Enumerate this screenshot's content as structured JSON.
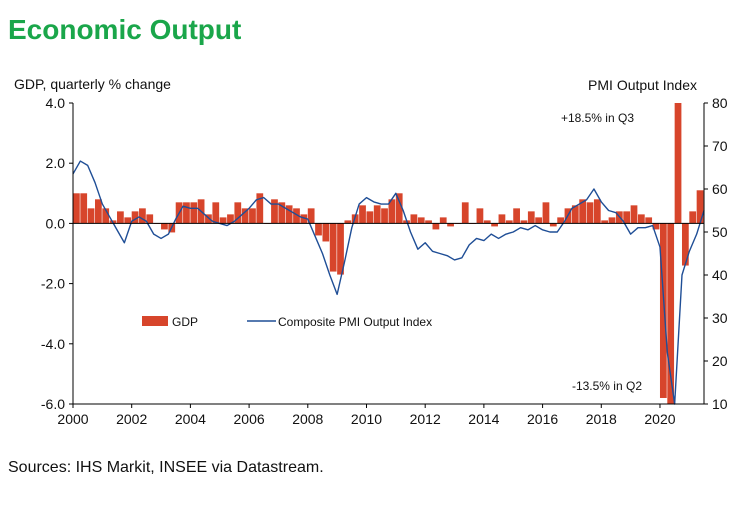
{
  "page": {
    "title": "Economic Output",
    "source": "Sources: IHS Markit, INSEE via Datastream."
  },
  "colors": {
    "title": "#1aa64a",
    "gdp": "#d7452b",
    "pmi": "#1f4e96",
    "axis": "#000000"
  },
  "chart_data": {
    "type": "bar",
    "left_axis_label": "GDP, quarterly % change",
    "right_axis_label": "PMI Output Index",
    "left_ylim": [
      -6,
      4
    ],
    "left_ticks": [
      "4.0",
      "2.0",
      "0.0",
      "-2.0",
      "-4.0",
      "-6.0"
    ],
    "right_ylim": [
      10,
      80
    ],
    "right_ticks": [
      "80",
      "70",
      "60",
      "50",
      "40",
      "30",
      "20",
      "10"
    ],
    "x_range": [
      2000,
      2021.5
    ],
    "x_ticks": [
      "2000",
      "2002",
      "2004",
      "2006",
      "2008",
      "2010",
      "2012",
      "2014",
      "2016",
      "2018",
      "2020"
    ],
    "legend": {
      "gdp": "GDP",
      "pmi": "Composite PMI Output Index",
      "position": "lower-left"
    },
    "annotations": {
      "high": "+18.5% in Q3",
      "low": "-13.5% in Q2"
    },
    "series": [
      {
        "name": "GDP",
        "kind": "bar",
        "axis": "left",
        "x": [
          "2000 Q1",
          "2000 Q2",
          "2000 Q3",
          "2000 Q4",
          "2001 Q1",
          "2001 Q2",
          "2001 Q3",
          "2001 Q4",
          "2002 Q1",
          "2002 Q2",
          "2002 Q3",
          "2002 Q4",
          "2003 Q1",
          "2003 Q2",
          "2003 Q3",
          "2003 Q4",
          "2004 Q1",
          "2004 Q2",
          "2004 Q3",
          "2004 Q4",
          "2005 Q1",
          "2005 Q2",
          "2005 Q3",
          "2005 Q4",
          "2006 Q1",
          "2006 Q2",
          "2006 Q3",
          "2006 Q4",
          "2007 Q1",
          "2007 Q2",
          "2007 Q3",
          "2007 Q4",
          "2008 Q1",
          "2008 Q2",
          "2008 Q3",
          "2008 Q4",
          "2009 Q1",
          "2009 Q2",
          "2009 Q3",
          "2009 Q4",
          "2010 Q1",
          "2010 Q2",
          "2010 Q3",
          "2010 Q4",
          "2011 Q1",
          "2011 Q2",
          "2011 Q3",
          "2011 Q4",
          "2012 Q1",
          "2012 Q2",
          "2012 Q3",
          "2012 Q4",
          "2013 Q1",
          "2013 Q2",
          "2013 Q3",
          "2013 Q4",
          "2014 Q1",
          "2014 Q2",
          "2014 Q3",
          "2014 Q4",
          "2015 Q1",
          "2015 Q2",
          "2015 Q3",
          "2015 Q4",
          "2016 Q1",
          "2016 Q2",
          "2016 Q3",
          "2016 Q4",
          "2017 Q1",
          "2017 Q2",
          "2017 Q3",
          "2017 Q4",
          "2018 Q1",
          "2018 Q2",
          "2018 Q3",
          "2018 Q4",
          "2019 Q1",
          "2019 Q2",
          "2019 Q3",
          "2019 Q4",
          "2020 Q1",
          "2020 Q2",
          "2020 Q3",
          "2020 Q4",
          "2021 Q1",
          "2021 Q2"
        ],
        "values": [
          1.0,
          1.0,
          0.5,
          0.8,
          0.5,
          0.1,
          0.4,
          0.2,
          0.4,
          0.5,
          0.3,
          0.0,
          -0.2,
          -0.3,
          0.7,
          0.7,
          0.7,
          0.8,
          0.3,
          0.7,
          0.2,
          0.3,
          0.7,
          0.5,
          0.5,
          1.0,
          0.0,
          0.8,
          0.7,
          0.6,
          0.5,
          0.3,
          0.5,
          -0.4,
          -0.6,
          -1.6,
          -1.7,
          0.1,
          0.3,
          0.6,
          0.4,
          0.6,
          0.5,
          0.8,
          1.0,
          0.1,
          0.3,
          0.2,
          0.1,
          -0.2,
          0.2,
          -0.1,
          0.0,
          0.7,
          0.0,
          0.5,
          0.1,
          -0.1,
          0.3,
          0.1,
          0.5,
          0.1,
          0.4,
          0.2,
          0.7,
          -0.1,
          0.2,
          0.5,
          0.6,
          0.8,
          0.7,
          0.8,
          0.1,
          0.2,
          0.4,
          0.4,
          0.6,
          0.3,
          0.2,
          -0.2,
          -5.8,
          -13.5,
          18.5,
          -1.4,
          0.4,
          1.1
        ]
      },
      {
        "name": "Composite PMI Output Index",
        "kind": "line",
        "axis": "right",
        "x": [
          2000.0,
          2000.25,
          2000.5,
          2000.75,
          2001.0,
          2001.25,
          2001.5,
          2001.75,
          2002.0,
          2002.25,
          2002.5,
          2002.75,
          2003.0,
          2003.25,
          2003.5,
          2003.75,
          2004.0,
          2004.25,
          2004.5,
          2004.75,
          2005.0,
          2005.25,
          2005.5,
          2005.75,
          2006.0,
          2006.25,
          2006.5,
          2006.75,
          2007.0,
          2007.25,
          2007.5,
          2007.75,
          2008.0,
          2008.25,
          2008.5,
          2008.75,
          2009.0,
          2009.25,
          2009.5,
          2009.75,
          2010.0,
          2010.25,
          2010.5,
          2010.75,
          2011.0,
          2011.25,
          2011.5,
          2011.75,
          2012.0,
          2012.25,
          2012.5,
          2012.75,
          2013.0,
          2013.25,
          2013.5,
          2013.75,
          2014.0,
          2014.25,
          2014.5,
          2014.75,
          2015.0,
          2015.25,
          2015.5,
          2015.75,
          2016.0,
          2016.25,
          2016.5,
          2016.75,
          2017.0,
          2017.25,
          2017.5,
          2017.75,
          2018.0,
          2018.25,
          2018.5,
          2018.75,
          2019.0,
          2019.25,
          2019.5,
          2019.75,
          2020.0,
          2020.25,
          2020.5,
          2020.75,
          2021.0,
          2021.25,
          2021.5
        ],
        "values": [
          63.5,
          66.5,
          65.5,
          61.5,
          56.5,
          53.5,
          50.5,
          47.5,
          52.5,
          53.5,
          52.5,
          49.5,
          48.5,
          49.5,
          53.0,
          56.0,
          55.5,
          55.5,
          54.0,
          52.5,
          52.0,
          51.5,
          52.5,
          54.0,
          55.5,
          57.5,
          58.0,
          56.5,
          56.5,
          55.5,
          54.5,
          53.5,
          53.0,
          49.0,
          45.0,
          40.0,
          35.5,
          43.0,
          51.0,
          56.5,
          58.0,
          57.0,
          56.5,
          56.5,
          59.0,
          55.0,
          50.0,
          46.0,
          47.5,
          45.5,
          45.0,
          44.5,
          43.5,
          44.0,
          47.0,
          48.5,
          48.0,
          49.5,
          48.5,
          49.5,
          50.0,
          51.0,
          50.5,
          51.5,
          50.5,
          50.0,
          50.0,
          52.5,
          55.5,
          56.5,
          57.5,
          60.0,
          57.0,
          55.0,
          54.5,
          52.5,
          49.5,
          51.0,
          51.0,
          51.5,
          46.5,
          22.0,
          10.0,
          40.0,
          45.5,
          49.5,
          55.0
        ]
      }
    ]
  }
}
